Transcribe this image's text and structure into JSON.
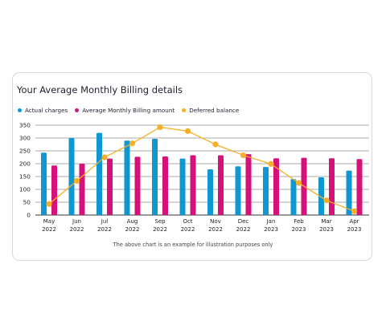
{
  "chart_data": {
    "type": "bar",
    "title": "Your Average Monthly Billing details",
    "categories": [
      "May 2022",
      "Jun 2022",
      "Jul 2022",
      "Aug 2022",
      "Sep 2022",
      "Oct 2022",
      "Nov 2022",
      "Dec 2022",
      "Jan 2023",
      "Feb 2023",
      "Mar 2023",
      "Apr 2023"
    ],
    "category_labels": [
      [
        "May",
        "2022"
      ],
      [
        "Jun",
        "2022"
      ],
      [
        "Jul",
        "2022"
      ],
      [
        "Aug",
        "2022"
      ],
      [
        "Sep",
        "2022"
      ],
      [
        "Oct",
        "2022"
      ],
      [
        "Nov",
        "2022"
      ],
      [
        "Dec",
        "2022"
      ],
      [
        "Jan",
        "2023"
      ],
      [
        "Feb",
        "2023"
      ],
      [
        "Mar",
        "2023"
      ],
      [
        "Apr",
        "2023"
      ]
    ],
    "series": [
      {
        "name": "Actual charges",
        "type": "bar",
        "color": "#0e97d1",
        "values": [
          243,
          300,
          320,
          290,
          297,
          220,
          178,
          190,
          187,
          140,
          147,
          173
        ]
      },
      {
        "name": "Average Monthly Billing amount",
        "type": "bar",
        "color": "#d6117a",
        "values": [
          193,
          200,
          220,
          227,
          228,
          233,
          233,
          237,
          221,
          223,
          221,
          218
        ]
      },
      {
        "name": "Deferred balance",
        "type": "line",
        "color": "#f5b027",
        "values": [
          43,
          133,
          225,
          279,
          342,
          327,
          275,
          233,
          199,
          125,
          57,
          15
        ]
      }
    ],
    "yticks": [
      0,
      50,
      100,
      150,
      200,
      250,
      300,
      350
    ],
    "ylim": [
      0,
      350
    ],
    "grid": true,
    "legend_position": "top-left",
    "footnote": "The above chart is an example for illustration purposes only"
  }
}
